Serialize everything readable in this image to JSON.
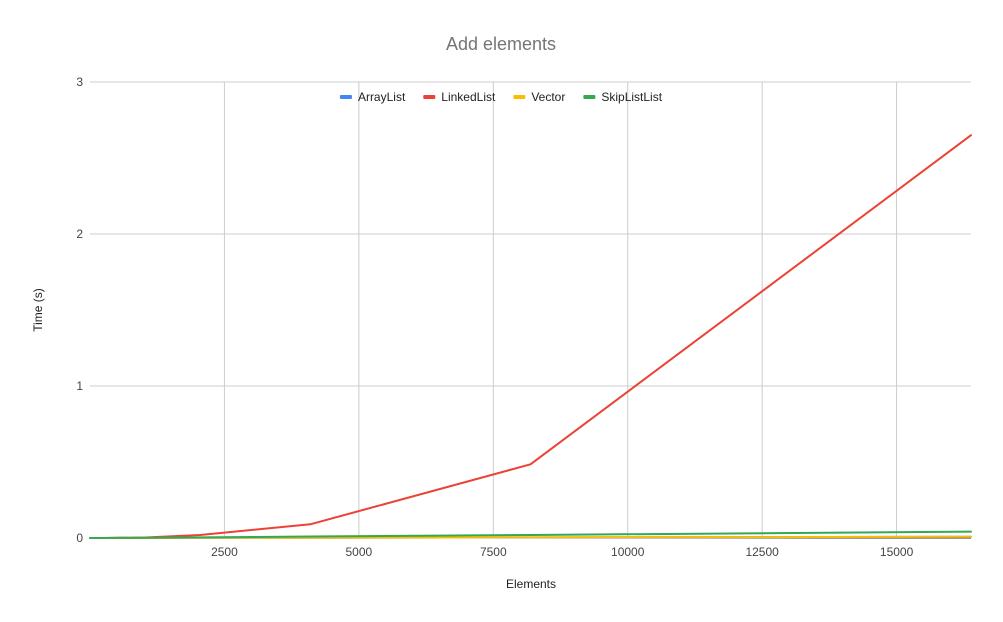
{
  "chart_data": {
    "type": "line",
    "title": "Add elements",
    "xlabel": "Elements",
    "ylabel": "Time (s)",
    "xlim": [
      0,
      16384
    ],
    "ylim": [
      0,
      3
    ],
    "x_ticks": [
      2500,
      5000,
      7500,
      10000,
      12500,
      15000
    ],
    "y_ticks": [
      0,
      1,
      2,
      3
    ],
    "grid": true,
    "legend_position": "top",
    "x": [
      0,
      128,
      256,
      512,
      1024,
      2048,
      4096,
      8192,
      16384
    ],
    "series": [
      {
        "name": "ArrayList",
        "color": "#4285f4",
        "values": [
          0,
          0,
          0,
          0,
          0.0005,
          0.001,
          0.002,
          0.004,
          0.008
        ]
      },
      {
        "name": "LinkedList",
        "color": "#ea4335",
        "values": [
          0,
          0,
          0,
          0.001,
          0.003,
          0.02,
          0.09,
          0.485,
          2.65
        ]
      },
      {
        "name": "Vector",
        "color": "#fbbc04",
        "values": [
          0,
          0,
          0,
          0,
          0.0005,
          0.001,
          0.002,
          0.004,
          0.008
        ]
      },
      {
        "name": "SkipListList",
        "color": "#34a853",
        "values": [
          0,
          0,
          0,
          0.0005,
          0.001,
          0.004,
          0.01,
          0.02,
          0.042
        ]
      }
    ]
  }
}
